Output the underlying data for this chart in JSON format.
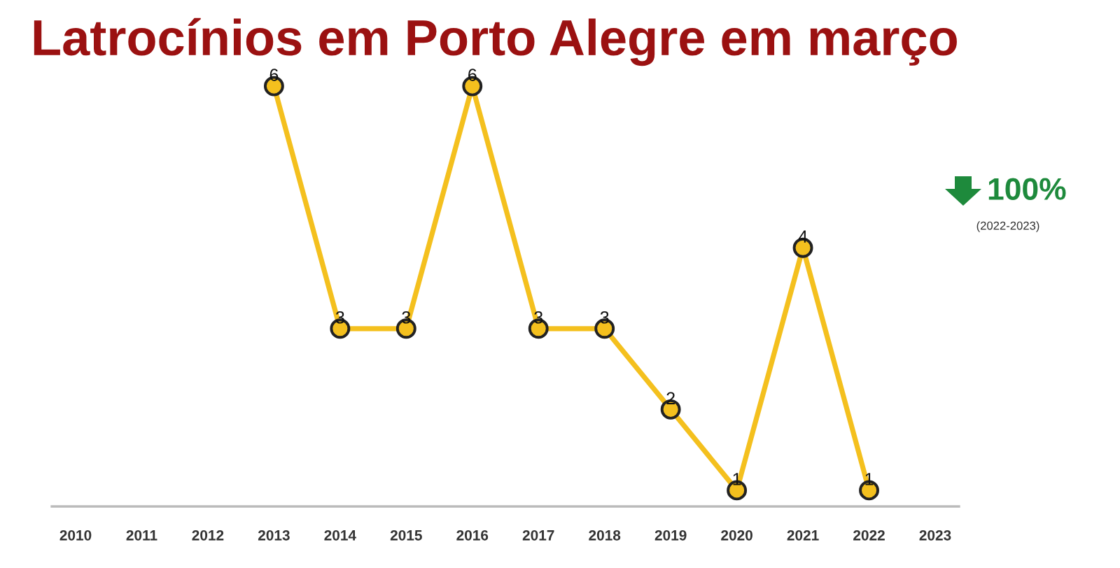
{
  "chart_data": {
    "type": "line",
    "title": "Latrocínios em Porto Alegre em março",
    "categories": [
      "2010",
      "2011",
      "2012",
      "2013",
      "2014",
      "2015",
      "2016",
      "2017",
      "2018",
      "2019",
      "2020",
      "2021",
      "2022",
      "2023"
    ],
    "series": [
      {
        "color": "#f4c01e",
        "values": [
          null,
          null,
          null,
          6,
          3,
          3,
          6,
          3,
          3,
          2,
          1,
          4,
          1,
          null
        ]
      }
    ],
    "tick_labels": "x",
    "data_labels": true,
    "marker": "circle",
    "line_style": "solid",
    "grid": false,
    "legend": false,
    "annotations": [
      "100%",
      "(2022-2023)"
    ]
  }
}
